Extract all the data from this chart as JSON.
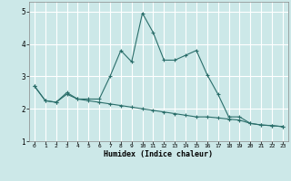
{
  "title": "",
  "xlabel": "Humidex (Indice chaleur)",
  "ylabel": "",
  "bg_color": "#cce8e8",
  "line_color": "#2a6e6a",
  "grid_color": "#ffffff",
  "xlim": [
    -0.5,
    23.5
  ],
  "ylim": [
    1.0,
    5.3
  ],
  "yticks": [
    1,
    2,
    3,
    4,
    5
  ],
  "xticks": [
    0,
    1,
    2,
    3,
    4,
    5,
    6,
    7,
    8,
    9,
    10,
    11,
    12,
    13,
    14,
    15,
    16,
    17,
    18,
    19,
    20,
    21,
    22,
    23
  ],
  "series1_x": [
    0,
    1,
    2,
    3,
    4,
    5,
    6,
    7,
    8,
    9,
    10,
    11,
    12,
    13,
    14,
    15,
    16,
    17,
    18,
    19,
    20,
    21,
    22,
    23
  ],
  "series1_y": [
    2.7,
    2.25,
    2.2,
    2.5,
    2.3,
    2.3,
    2.3,
    3.0,
    3.8,
    3.45,
    4.95,
    4.35,
    3.5,
    3.5,
    3.65,
    3.8,
    3.05,
    2.45,
    1.75,
    1.75,
    1.55,
    1.5,
    1.48,
    1.45
  ],
  "series2_x": [
    0,
    1,
    2,
    3,
    4,
    5,
    6,
    7,
    8,
    9,
    10,
    11,
    12,
    13,
    14,
    15,
    16,
    17,
    18,
    19,
    20,
    21,
    22,
    23
  ],
  "series2_y": [
    2.7,
    2.25,
    2.2,
    2.45,
    2.3,
    2.25,
    2.2,
    2.15,
    2.1,
    2.05,
    2.0,
    1.95,
    1.9,
    1.85,
    1.8,
    1.75,
    1.75,
    1.72,
    1.68,
    1.65,
    1.55,
    1.5,
    1.48,
    1.45
  ]
}
